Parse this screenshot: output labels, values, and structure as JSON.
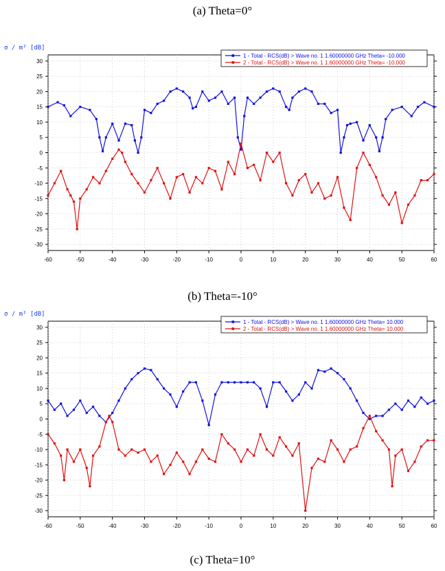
{
  "captions": {
    "a": "(a) Theta=0°",
    "b": "(b) Theta=-10°",
    "c": "(c) Theta=10°"
  },
  "colors": {
    "series1": "#1010e0",
    "series2": "#e01010",
    "grid": "#b0b0b0"
  },
  "chart_data": [
    {
      "type": "line",
      "ylabel": "σ / m² [dB]",
      "xlim": [
        -60,
        60
      ],
      "ylim": [
        -32,
        32
      ],
      "xticks": [
        -60,
        -50,
        -40,
        -30,
        -20,
        -10,
        0,
        10,
        20,
        30,
        40,
        50,
        60
      ],
      "yticks": [
        30,
        25,
        20,
        15,
        10,
        5,
        0,
        -5,
        -10,
        -15,
        -20,
        -25,
        -30
      ],
      "legend_position": "top-right",
      "grid": true,
      "series": [
        {
          "name": "1 - Total - RCS(dB) > Wave no. 1   1.60000000 GHz     Theta= -10.000",
          "x": [
            -60,
            -57,
            -55,
            -53,
            -50,
            -47,
            -45,
            -44,
            -43,
            -42,
            -40,
            -38,
            -36,
            -34,
            -33,
            -32,
            -31,
            -30,
            -28,
            -26,
            -24,
            -22,
            -20,
            -18,
            -16,
            -15,
            -14,
            -12,
            -10,
            -8,
            -6,
            -4,
            -2,
            -1,
            0,
            1,
            2,
            4,
            6,
            8,
            10,
            12,
            14,
            15,
            16,
            18,
            20,
            22,
            24,
            26,
            28,
            30,
            31,
            32,
            33,
            34,
            36,
            38,
            40,
            42,
            43,
            44,
            45,
            47,
            50,
            53,
            55,
            57,
            60
          ],
          "y": [
            15,
            16.5,
            15.5,
            12,
            15,
            14,
            11,
            5,
            0.5,
            5,
            9.5,
            4,
            9.5,
            9,
            4,
            0,
            5,
            14,
            13,
            16,
            17,
            20,
            21,
            20,
            18,
            14.5,
            15,
            20,
            17,
            18,
            20,
            16,
            18,
            5,
            1,
            12,
            18,
            16,
            18,
            20,
            21,
            20,
            15,
            14,
            18,
            20,
            21,
            20,
            16,
            16,
            13,
            14,
            0,
            5,
            9,
            9.5,
            10,
            4,
            9,
            5,
            0.5,
            5,
            11,
            14,
            15,
            12,
            15,
            16.5,
            15
          ]
        },
        {
          "name": "2 - Total - RCS(dB) > Wave no. 1   1.60000000 GHz     Theta= -10.000",
          "x": [
            -60,
            -58,
            -56,
            -54,
            -53,
            -52,
            -51,
            -50,
            -48,
            -46,
            -44,
            -42,
            -40,
            -38,
            -37,
            -36,
            -34,
            -32,
            -30,
            -28,
            -26,
            -24,
            -22,
            -20,
            -18,
            -16,
            -14,
            -12,
            -10,
            -8,
            -6,
            -4,
            -2,
            0,
            2,
            4,
            6,
            8,
            10,
            12,
            14,
            16,
            18,
            20,
            22,
            24,
            26,
            28,
            30,
            32,
            34,
            36,
            38,
            40,
            42,
            44,
            46,
            48,
            50,
            52,
            54,
            56,
            58,
            60
          ],
          "y": [
            -14,
            -10,
            -6,
            -12,
            -14,
            -16,
            -25,
            -15,
            -12,
            -8,
            -10,
            -6,
            -2,
            1,
            0,
            -3,
            -7,
            -10,
            -13,
            -9,
            -5,
            -10,
            -15,
            -8,
            -7,
            -13,
            -8,
            -10,
            -5,
            -6,
            -12,
            -3,
            -7,
            3,
            -5,
            -4,
            -9,
            0,
            -3,
            0,
            -10,
            -14,
            -9,
            -7,
            -13,
            -10,
            -15,
            -14,
            -8,
            -18,
            -22,
            -5,
            0,
            -4,
            -8,
            -14,
            -17,
            -13,
            -23,
            -17,
            -14,
            -9,
            -9,
            -7
          ]
        }
      ]
    },
    {
      "type": "line",
      "ylabel": "σ / m² [dB]",
      "xlim": [
        -60,
        60
      ],
      "ylim": [
        -32,
        32
      ],
      "xticks": [
        -60,
        -50,
        -40,
        -30,
        -20,
        -10,
        0,
        10,
        20,
        30,
        40,
        50,
        60
      ],
      "yticks": [
        30,
        25,
        20,
        15,
        10,
        5,
        0,
        -5,
        -10,
        -15,
        -20,
        -25,
        -30
      ],
      "legend_position": "top-right",
      "grid": true,
      "series": [
        {
          "name": "1 - Total - RCS(dB) > Wave no. 1   1.60000000 GHz     Theta= 10.000",
          "x": [
            -60,
            -58,
            -56,
            -54,
            -52,
            -50,
            -48,
            -46,
            -44,
            -42,
            -40,
            -38,
            -36,
            -34,
            -32,
            -30,
            -28,
            -26,
            -24,
            -22,
            -20,
            -18,
            -16,
            -14,
            -12,
            -10,
            -8,
            -6,
            -4,
            -2,
            0,
            2,
            4,
            6,
            8,
            10,
            12,
            14,
            16,
            18,
            20,
            22,
            24,
            26,
            28,
            30,
            32,
            34,
            36,
            38,
            40,
            42,
            44,
            46,
            48,
            50,
            52,
            54,
            56,
            58,
            60
          ],
          "y": [
            6,
            3,
            5,
            1,
            3,
            6,
            2,
            4,
            1,
            -1,
            2,
            6,
            10,
            13,
            15,
            16.5,
            16,
            13,
            10,
            8,
            4,
            9,
            12,
            12,
            6,
            -2,
            8,
            12,
            12,
            12,
            12,
            12,
            12,
            10,
            4,
            12,
            12,
            9,
            6,
            8,
            12,
            10,
            16,
            15.5,
            16.5,
            15,
            13,
            10,
            6,
            2,
            0,
            1,
            1,
            3,
            5,
            3,
            6,
            4,
            7,
            5,
            6
          ]
        },
        {
          "name": "2 - Total - RCS(dB) > Wave no. 1   1.60000000 GHz     Theta= 10.000",
          "x": [
            -60,
            -58,
            -56,
            -55,
            -54,
            -52,
            -50,
            -48,
            -47,
            -46,
            -44,
            -42,
            -41,
            -40,
            -38,
            -36,
            -34,
            -32,
            -30,
            -28,
            -26,
            -24,
            -22,
            -20,
            -18,
            -16,
            -14,
            -12,
            -10,
            -8,
            -6,
            -4,
            -2,
            0,
            2,
            4,
            6,
            8,
            10,
            12,
            14,
            16,
            18,
            20,
            22,
            24,
            26,
            28,
            30,
            32,
            34,
            36,
            38,
            40,
            42,
            44,
            46,
            47,
            48,
            50,
            52,
            54,
            56,
            58,
            60
          ],
          "y": [
            -5,
            -8,
            -12,
            -20,
            -10,
            -14,
            -10,
            -16,
            -22,
            -12,
            -9,
            -1,
            1,
            -1,
            -10,
            -12,
            -10,
            -11,
            -10,
            -14,
            -12,
            -18,
            -15,
            -11,
            -14,
            -18,
            -14,
            -10,
            -13,
            -14,
            -5,
            -8,
            -10,
            -14,
            -10,
            -12,
            -5,
            -10,
            -12,
            -6,
            -9,
            -12,
            -8,
            -30,
            -16,
            -13,
            -14,
            -7,
            -10,
            -14,
            -10,
            -9,
            -3,
            1,
            -4,
            -7,
            -10,
            -22,
            -12,
            -10,
            -17,
            -14,
            -9,
            -7,
            -7
          ]
        }
      ]
    }
  ]
}
